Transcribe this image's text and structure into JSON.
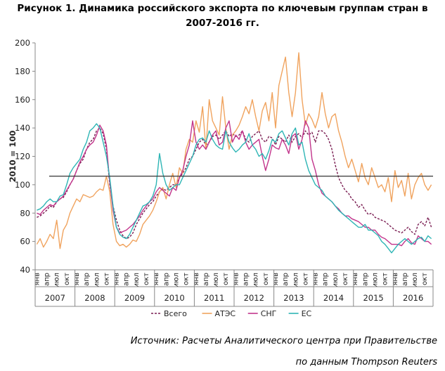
{
  "title": {
    "line1": "Рисунок 1. Динамика российского экспорта по ключевым группам стран в",
    "line2": "2007-2016  гг."
  },
  "source": {
    "line1": "Источник:  Расчеты Аналитического центра при Правительстве",
    "line2": "по данным  Thompson Reuters"
  },
  "chart_data": {
    "type": "line",
    "ylabel": "2010 = 100",
    "ylim": [
      40,
      200
    ],
    "yticks": [
      40,
      60,
      80,
      100,
      120,
      140,
      160,
      180,
      200
    ],
    "month_labels": [
      "янв",
      "апр",
      "июл",
      "окт"
    ],
    "years": [
      "2007",
      "2008",
      "2009",
      "2010",
      "2011",
      "2012",
      "2013",
      "2014",
      "2015",
      "2016"
    ],
    "reference_line": 106,
    "grid": false,
    "legend_position": "bottom",
    "colors": {
      "Всего": "#7a1d52",
      "АТЭС": "#f0a35e",
      "СНГ": "#c2358c",
      "ЕС": "#2eb5b5",
      "reference": "#333333"
    },
    "series": [
      {
        "name": "Всего",
        "dashed": true,
        "values": [
          77,
          78,
          80,
          82,
          85,
          84,
          88,
          90,
          91,
          95,
          100,
          104,
          110,
          115,
          118,
          125,
          130,
          132,
          138,
          140,
          136,
          125,
          100,
          85,
          75,
          68,
          64,
          62,
          63,
          66,
          72,
          76,
          80,
          83,
          86,
          88,
          92,
          95,
          97,
          96,
          98,
          100,
          100,
          105,
          108,
          112,
          118,
          120,
          125,
          130,
          132,
          128,
          130,
          134,
          135,
          132,
          135,
          138,
          134,
          136,
          134,
          135,
          138,
          132,
          130,
          134,
          136,
          138,
          132,
          130,
          134,
          133,
          128,
          134,
          132,
          130,
          135,
          130,
          134,
          136,
          133,
          138,
          135,
          137,
          130,
          138,
          138,
          136,
          132,
          125,
          114,
          105,
          100,
          96,
          94,
          90,
          88,
          84,
          86,
          82,
          79,
          80,
          77,
          76,
          75,
          74,
          72,
          70,
          68,
          67,
          66,
          68,
          70,
          67,
          65,
          72,
          74,
          71,
          77,
          70
        ]
      },
      {
        "name": "АТЭС",
        "dashed": false,
        "values": [
          58,
          62,
          56,
          60,
          65,
          62,
          75,
          55,
          68,
          72,
          80,
          85,
          90,
          88,
          93,
          92,
          91,
          92,
          95,
          97,
          96,
          106,
          95,
          72,
          60,
          57,
          58,
          56,
          58,
          61,
          60,
          65,
          72,
          75,
          78,
          82,
          88,
          95,
          98,
          90,
          100,
          108,
          98,
          112,
          108,
          125,
          132,
          130,
          145,
          137,
          155,
          125,
          160,
          145,
          140,
          135,
          162,
          140,
          125,
          135,
          138,
          142,
          148,
          155,
          150,
          160,
          148,
          138,
          152,
          158,
          145,
          165,
          140,
          170,
          180,
          190,
          165,
          148,
          165,
          193,
          160,
          142,
          150,
          146,
          140,
          148,
          165,
          150,
          140,
          148,
          150,
          138,
          130,
          120,
          112,
          118,
          110,
          102,
          115,
          105,
          100,
          112,
          105,
          98,
          100,
          95,
          105,
          88,
          110,
          98,
          103,
          92,
          108,
          90,
          100,
          105,
          108,
          100,
          96,
          100
        ]
      },
      {
        "name": "СНГ",
        "dashed": false,
        "values": [
          80,
          79,
          82,
          84,
          86,
          85,
          88,
          90,
          92,
          96,
          100,
          104,
          110,
          116,
          120,
          125,
          128,
          130,
          135,
          142,
          138,
          128,
          102,
          82,
          70,
          66,
          67,
          68,
          70,
          72,
          75,
          78,
          82,
          85,
          88,
          90,
          95,
          98,
          96,
          94,
          92,
          98,
          96,
          105,
          110,
          120,
          128,
          145,
          130,
          125,
          128,
          125,
          130,
          135,
          138,
          128,
          130,
          140,
          145,
          130,
          135,
          132,
          138,
          130,
          125,
          128,
          130,
          132,
          120,
          110,
          118,
          128,
          126,
          125,
          132,
          128,
          122,
          134,
          136,
          125,
          132,
          145,
          140,
          118,
          110,
          100,
          94,
          92,
          90,
          88,
          85,
          83,
          80,
          78,
          78,
          76,
          75,
          74,
          72,
          70,
          70,
          68,
          68,
          65,
          63,
          62,
          60,
          58,
          58,
          58,
          57,
          60,
          62,
          59,
          58,
          64,
          62,
          60,
          60,
          58
        ]
      },
      {
        "name": "ЕС",
        "dashed": false,
        "values": [
          82,
          83,
          85,
          88,
          90,
          88,
          88,
          92,
          93,
          100,
          108,
          112,
          115,
          118,
          125,
          130,
          138,
          140,
          143,
          140,
          130,
          120,
          105,
          85,
          70,
          65,
          63,
          62,
          65,
          70,
          75,
          80,
          85,
          86,
          88,
          92,
          100,
          122,
          108,
          100,
          96,
          98,
          100,
          100,
          105,
          110,
          115,
          120,
          128,
          132,
          133,
          130,
          138,
          132,
          128,
          126,
          125,
          138,
          130,
          126,
          123,
          125,
          128,
          130,
          136,
          128,
          125,
          120,
          122,
          118,
          124,
          132,
          130,
          136,
          138,
          133,
          128,
          136,
          140,
          128,
          130,
          118,
          110,
          105,
          100,
          98,
          96,
          92,
          90,
          88,
          85,
          82,
          80,
          78,
          76,
          74,
          72,
          70,
          70,
          72,
          68,
          68,
          66,
          64,
          60,
          58,
          55,
          52,
          55,
          58,
          60,
          62,
          60,
          58,
          60,
          62,
          63,
          60,
          64,
          62
        ]
      }
    ]
  }
}
